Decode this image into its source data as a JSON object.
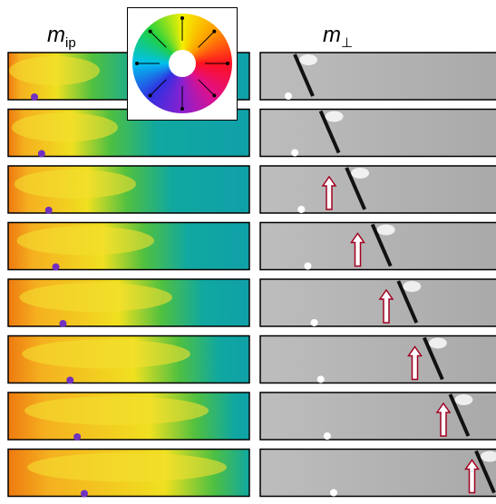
{
  "labels": {
    "left": {
      "base": "m",
      "sub": "ip"
    },
    "right": {
      "base": "m",
      "sub": "⊥"
    }
  }
}
